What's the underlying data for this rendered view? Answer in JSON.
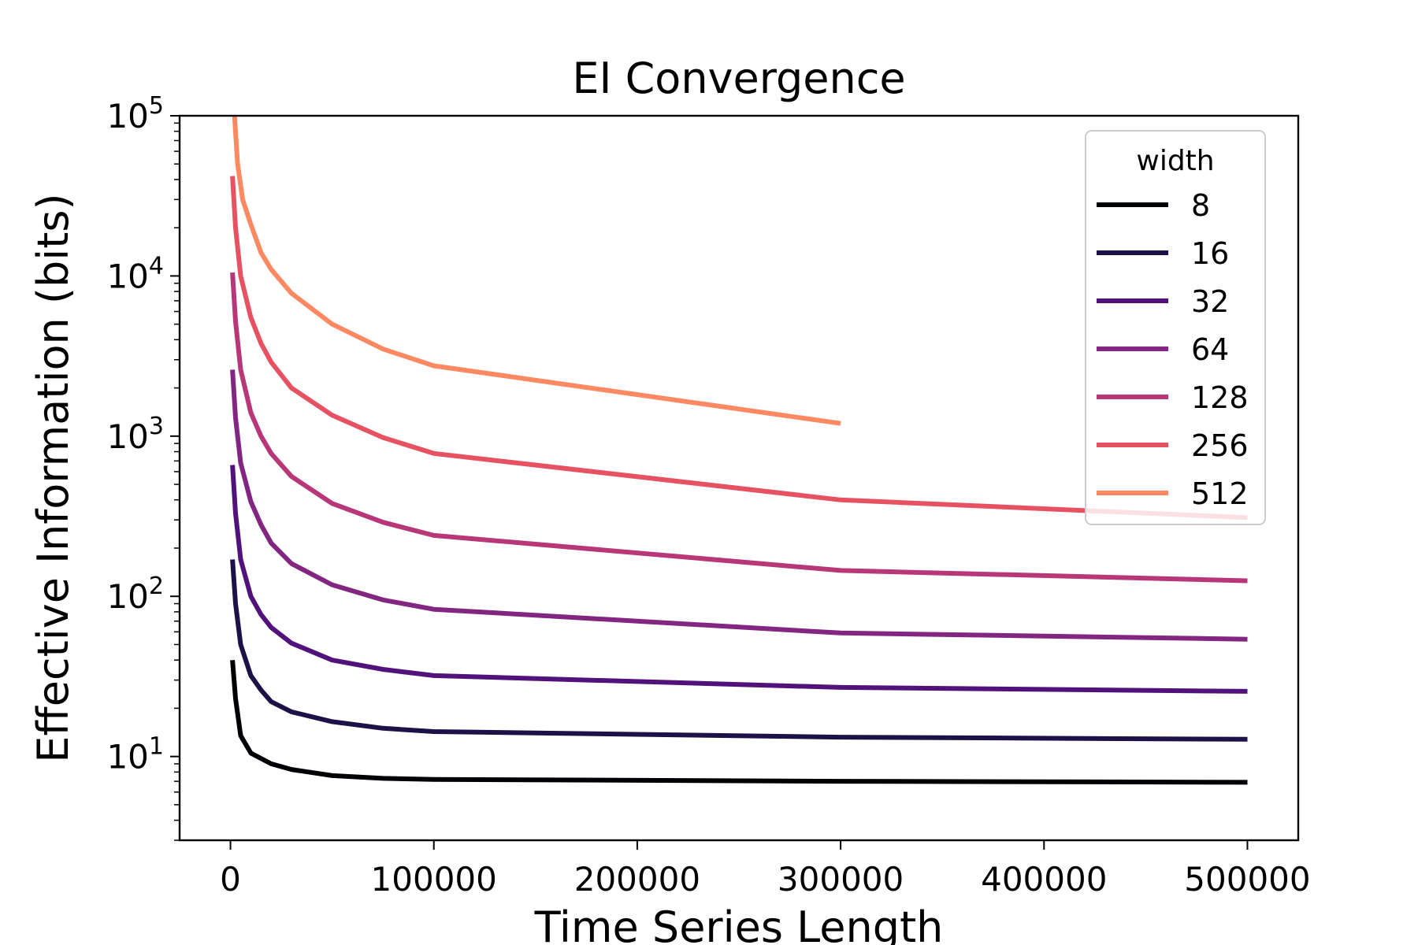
{
  "chart_data": {
    "type": "line",
    "title": "EI Convergence",
    "xlabel": "Time Series Length",
    "ylabel": "Effective Information (bits)",
    "yscale": "log",
    "xlim": [
      -25000,
      525000
    ],
    "ylim": [
      3,
      100000
    ],
    "grid": false,
    "xticks": [
      0,
      100000,
      200000,
      300000,
      400000,
      500000
    ],
    "xtick_labels": [
      "0",
      "100000",
      "200000",
      "300000",
      "400000",
      "500000"
    ],
    "yticks": [
      {
        "value": 10,
        "base": "10",
        "exp": "1"
      },
      {
        "value": 100,
        "base": "10",
        "exp": "2"
      },
      {
        "value": 1000,
        "base": "10",
        "exp": "3"
      },
      {
        "value": 10000,
        "base": "10",
        "exp": "4"
      },
      {
        "value": 100000,
        "base": "10",
        "exp": "5"
      }
    ],
    "legend": {
      "title": "width",
      "placement": "top-right"
    },
    "series": [
      {
        "name": "8",
        "color": "#000004",
        "x": [
          1000,
          2500,
          5000,
          10000,
          20000,
          30000,
          50000,
          75000,
          100000,
          300000,
          500000
        ],
        "y": [
          40,
          23,
          13.5,
          10.5,
          9.0,
          8.3,
          7.6,
          7.3,
          7.2,
          7.0,
          6.9
        ]
      },
      {
        "name": "16",
        "color": "#1d1147",
        "x": [
          1000,
          2500,
          5000,
          10000,
          15000,
          20000,
          30000,
          50000,
          75000,
          100000,
          300000,
          500000
        ],
        "y": [
          170,
          90,
          50,
          32,
          26,
          22,
          19,
          16.5,
          15,
          14.3,
          13.2,
          12.8
        ]
      },
      {
        "name": "32",
        "color": "#51127c",
        "x": [
          1000,
          2500,
          5000,
          10000,
          15000,
          20000,
          30000,
          50000,
          75000,
          100000,
          300000,
          500000
        ],
        "y": [
          660,
          330,
          170,
          100,
          77,
          64,
          51,
          40,
          35,
          32,
          27,
          25.5
        ]
      },
      {
        "name": "64",
        "color": "#822681",
        "x": [
          1000,
          2500,
          5000,
          10000,
          15000,
          20000,
          30000,
          50000,
          75000,
          100000,
          300000,
          500000
        ],
        "y": [
          2600,
          1300,
          680,
          390,
          280,
          215,
          160,
          118,
          95,
          83,
          59,
          54
        ]
      },
      {
        "name": "128",
        "color": "#b73779",
        "x": [
          1000,
          2500,
          5000,
          10000,
          15000,
          20000,
          30000,
          50000,
          75000,
          100000,
          300000,
          500000
        ],
        "y": [
          10500,
          5200,
          2600,
          1400,
          1000,
          780,
          560,
          380,
          290,
          240,
          145,
          125
        ]
      },
      {
        "name": "256",
        "color": "#e75263",
        "x": [
          1000,
          2500,
          5000,
          10000,
          15000,
          20000,
          30000,
          50000,
          75000,
          100000,
          300000,
          500000
        ],
        "y": [
          42000,
          20000,
          10000,
          5500,
          3800,
          2900,
          2000,
          1350,
          980,
          780,
          400,
          310
        ]
      },
      {
        "name": "512",
        "color": "#fc8961",
        "x": [
          2000,
          3500,
          6000,
          10000,
          15000,
          20000,
          30000,
          50000,
          75000,
          100000,
          300000
        ],
        "y": [
          100000,
          50000,
          30000,
          21000,
          14000,
          11000,
          7800,
          5000,
          3500,
          2750,
          1200
        ]
      }
    ]
  }
}
